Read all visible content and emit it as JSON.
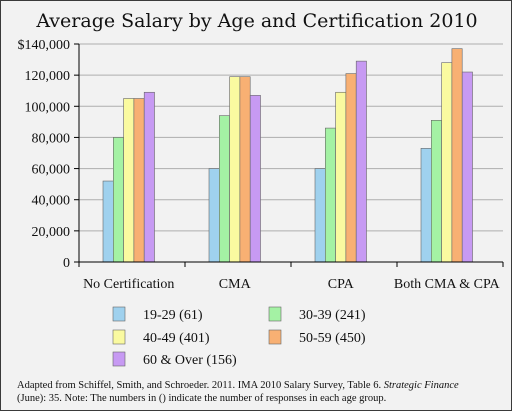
{
  "chart_data": {
    "type": "bar",
    "title": "Average Salary by Age and Certification 2010",
    "categories": [
      "No Certification",
      "CMA",
      "CPA",
      "Both CMA & CPA"
    ],
    "series": [
      {
        "name": "19-29 (61)",
        "color": "#9fd1ee",
        "values": [
          52000,
          60000,
          60000,
          73000
        ]
      },
      {
        "name": "30-39 (241)",
        "color": "#a4f2a4",
        "values": [
          80000,
          94000,
          86000,
          91000
        ]
      },
      {
        "name": "40-49 (401)",
        "color": "#fafaa0",
        "values": [
          105000,
          119000,
          109000,
          128000
        ]
      },
      {
        "name": "50-59 (450)",
        "color": "#f8b073",
        "values": [
          105000,
          119000,
          121000,
          137000
        ]
      },
      {
        "name": "60 & Over (156)",
        "color": "#c79af3",
        "values": [
          109000,
          107000,
          129000,
          122000
        ]
      }
    ],
    "ylim": [
      0,
      140000
    ],
    "yticks": [
      "$140,000",
      "120,000",
      "100,000",
      "80,000",
      "60,000",
      "40,000",
      "20,000",
      "0"
    ],
    "xlabel": "",
    "ylabel": "",
    "grid": true,
    "legend": "bottom"
  },
  "footnote": {
    "line1_pre": "Adapted from Schiffel, Smith, and Schroeder. 2011. IMA 2010 Salary Survey, Table 6. ",
    "line1_italic": "Strategic Finance",
    "line2": "(June): 35.  Note: The numbers in () indicate the number of responses in each age group."
  }
}
